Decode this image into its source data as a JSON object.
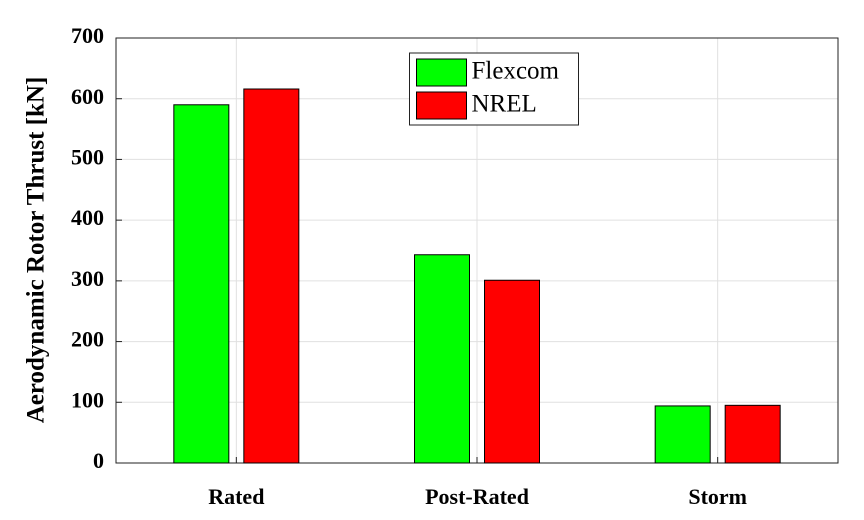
{
  "chart_data": {
    "type": "bar",
    "ylabel": "Aerodynamic Rotor Thrust [kN]",
    "categories": [
      "Rated",
      "Post-Rated",
      "Storm"
    ],
    "series": [
      {
        "name": "Flexcom",
        "color": "#00ff00",
        "values": [
          590,
          343,
          94
        ]
      },
      {
        "name": "NREL",
        "color": "#ff0000",
        "values": [
          616,
          301,
          95
        ]
      }
    ],
    "ylim": [
      0,
      700
    ],
    "yticks": [
      0,
      100,
      200,
      300,
      400,
      500,
      600,
      700
    ],
    "grid": true,
    "legend": "top"
  }
}
